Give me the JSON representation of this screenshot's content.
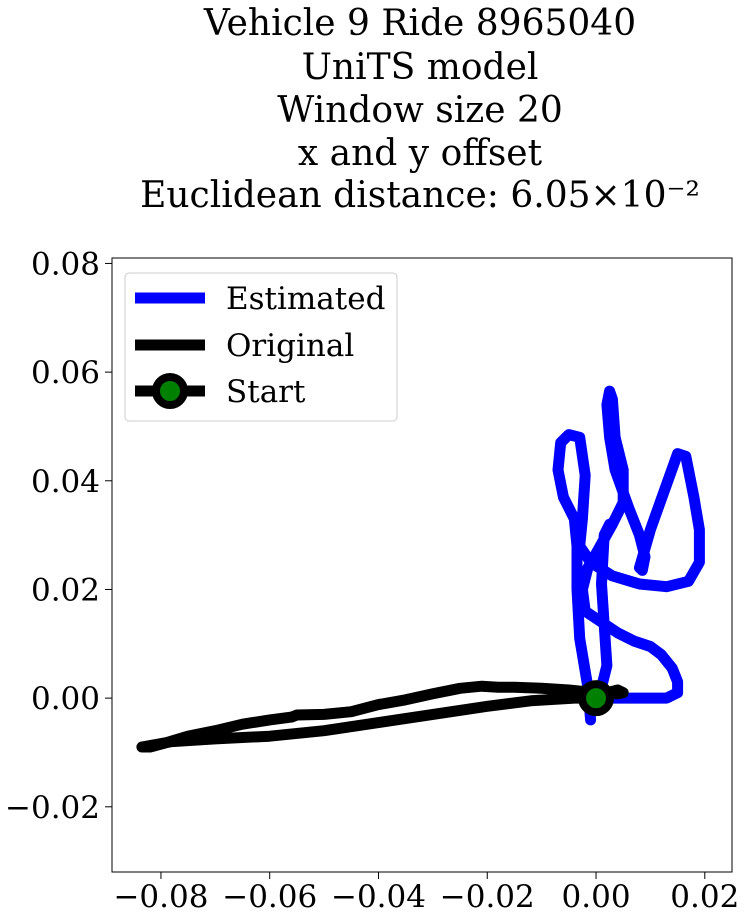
{
  "chart_data": {
    "type": "line",
    "title_lines": [
      "Vehicle 9 Ride 8965040",
      "UniTS model",
      "Window size 20",
      "x and y offset",
      "Euclidean distance: 6.05×10⁻²"
    ],
    "xlabel": "",
    "ylabel": "",
    "xlim": [
      -0.089,
      0.025
    ],
    "ylim": [
      -0.032,
      0.081
    ],
    "xticks": [
      -0.08,
      -0.06,
      -0.04,
      -0.02,
      0.0,
      0.02
    ],
    "xtick_labels": [
      "−0.08",
      "−0.06",
      "−0.04",
      "−0.02",
      "0.00",
      "0.02"
    ],
    "yticks": [
      -0.02,
      0.0,
      0.02,
      0.04,
      0.06,
      0.08
    ],
    "ytick_labels": [
      "−0.02",
      "0.00",
      "0.02",
      "0.04",
      "0.06",
      "0.08"
    ],
    "grid": false,
    "legend_position": "upper-left",
    "series": [
      {
        "name": "Estimated",
        "color": "#0000ff",
        "points": [
          [
            -0.001,
            -0.004
          ],
          [
            -0.0015,
            0.002
          ],
          [
            -0.003,
            0.011
          ],
          [
            -0.0035,
            0.02
          ],
          [
            -0.0035,
            0.028
          ],
          [
            -0.004,
            0.033
          ],
          [
            -0.006,
            0.037
          ],
          [
            -0.007,
            0.042
          ],
          [
            -0.0065,
            0.047
          ],
          [
            -0.005,
            0.0485
          ],
          [
            -0.003,
            0.048
          ],
          [
            -0.002,
            0.041
          ],
          [
            -0.0025,
            0.033
          ],
          [
            -0.003,
            0.028
          ],
          [
            -0.001,
            0.025
          ],
          [
            0.003,
            0.0225
          ],
          [
            0.008,
            0.021
          ],
          [
            0.013,
            0.0205
          ],
          [
            0.017,
            0.0215
          ],
          [
            0.019,
            0.025
          ],
          [
            0.019,
            0.031
          ],
          [
            0.018,
            0.037
          ],
          [
            0.0165,
            0.0445
          ],
          [
            0.015,
            0.045
          ],
          [
            0.0125,
            0.038
          ],
          [
            0.01,
            0.031
          ],
          [
            0.008,
            0.024
          ],
          [
            0.0085,
            0.0235
          ],
          [
            0.009,
            0.026
          ],
          [
            0.008,
            0.03
          ],
          [
            0.006,
            0.035
          ],
          [
            0.0035,
            0.042
          ],
          [
            0.0025,
            0.048
          ],
          [
            0.002,
            0.054
          ],
          [
            0.0025,
            0.0565
          ],
          [
            0.003,
            0.055
          ],
          [
            0.0035,
            0.048
          ],
          [
            0.005,
            0.042
          ],
          [
            0.005,
            0.036
          ],
          [
            0.003,
            0.032
          ],
          [
            0.0005,
            0.0275
          ],
          [
            -0.0015,
            0.024
          ],
          [
            -0.0025,
            0.02
          ],
          [
            -0.002,
            0.016
          ],
          [
            0.001,
            0.014
          ],
          [
            0.004,
            0.012
          ],
          [
            0.007,
            0.0105
          ],
          [
            0.01,
            0.0095
          ],
          [
            0.012,
            0.008
          ],
          [
            0.014,
            0.0055
          ],
          [
            0.015,
            0.003
          ],
          [
            0.015,
            0.001
          ],
          [
            0.013,
            0.0
          ],
          [
            0.01,
            0.0
          ],
          [
            0.005,
            0.0
          ],
          [
            0.001,
            0.0
          ],
          [
            0.0,
            0.0
          ],
          [
            0.001,
            0.002
          ],
          [
            0.002,
            0.006
          ],
          [
            0.001,
            0.021
          ],
          [
            0.0015,
            0.03
          ],
          [
            0.0025,
            0.032
          ]
        ]
      },
      {
        "name": "Original",
        "color": "#000000",
        "points": [
          [
            0.0,
            0.0
          ],
          [
            -0.004,
            0.0
          ],
          [
            -0.012,
            -0.0005
          ],
          [
            -0.02,
            -0.0015
          ],
          [
            -0.03,
            -0.003
          ],
          [
            -0.04,
            -0.0045
          ],
          [
            -0.05,
            -0.006
          ],
          [
            -0.06,
            -0.007
          ],
          [
            -0.07,
            -0.0075
          ],
          [
            -0.078,
            -0.008
          ],
          [
            -0.0835,
            -0.009
          ],
          [
            -0.082,
            -0.009
          ],
          [
            -0.079,
            -0.0082
          ],
          [
            -0.075,
            -0.007
          ],
          [
            -0.07,
            -0.006
          ],
          [
            -0.065,
            -0.0048
          ],
          [
            -0.06,
            -0.004
          ],
          [
            -0.056,
            -0.0035
          ],
          [
            -0.055,
            -0.0031
          ],
          [
            -0.05,
            -0.003
          ],
          [
            -0.045,
            -0.0025
          ],
          [
            -0.04,
            -0.0012
          ],
          [
            -0.035,
            -0.0003
          ],
          [
            -0.03,
            0.0008
          ],
          [
            -0.025,
            0.0018
          ],
          [
            -0.021,
            0.0022
          ],
          [
            -0.018,
            0.002
          ],
          [
            -0.015,
            0.002
          ],
          [
            -0.01,
            0.0018
          ],
          [
            -0.005,
            0.0015
          ],
          [
            0.0,
            0.001
          ],
          [
            0.004,
            0.0008
          ],
          [
            0.005,
            0.001
          ],
          [
            0.004,
            0.0015
          ],
          [
            0.002,
            0.001
          ],
          [
            0.0,
            0.0
          ]
        ]
      }
    ],
    "start_marker": {
      "name": "Start",
      "x": 0.0,
      "y": 0.0,
      "marker_edge_color": "#000000",
      "marker_face_color": "#008000"
    }
  }
}
